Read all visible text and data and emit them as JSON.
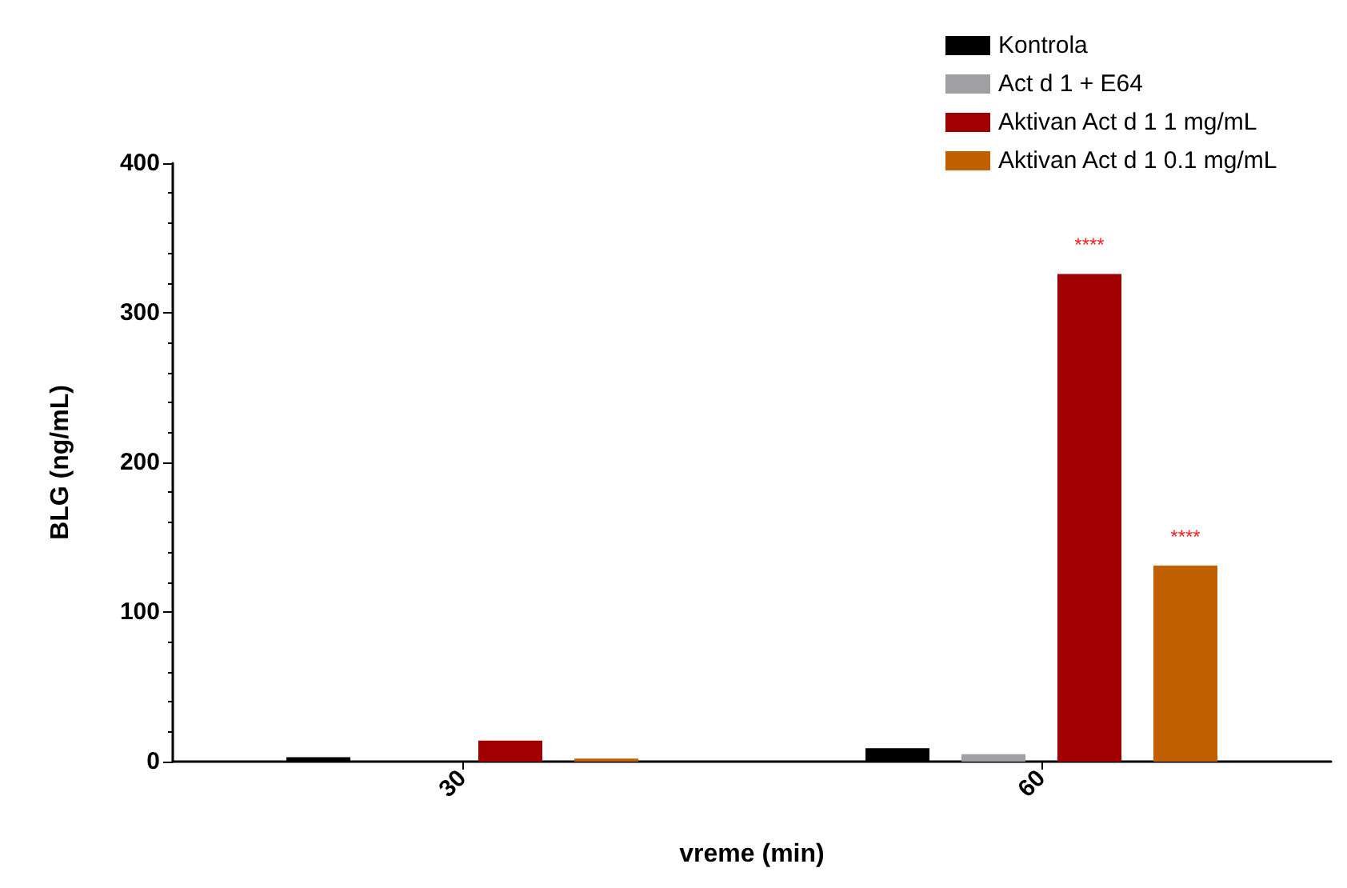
{
  "chart_data": {
    "type": "bar",
    "xlabel": "vreme (min)",
    "ylabel": "BLG (ng/mL)",
    "categories": [
      "30",
      "60"
    ],
    "series": [
      {
        "name": "Kontrola",
        "color": "#000000",
        "values": [
          3,
          9
        ]
      },
      {
        "name": "Act d 1 + E64",
        "color": "#a0a0a4",
        "values": [
          0,
          5
        ]
      },
      {
        "name": "Aktivan Act d 1 1 mg/mL",
        "color": "#a00000",
        "values": [
          14,
          326
        ],
        "value_labels": [
          null,
          "****"
        ]
      },
      {
        "name": "Aktivan Act d 1 0.1 mg/mL",
        "color": "#c06000",
        "values": [
          2,
          131
        ],
        "value_labels": [
          null,
          "****"
        ]
      }
    ],
    "ylim": [
      0,
      400
    ],
    "yticks": [
      0,
      100,
      200,
      300,
      400
    ],
    "grid": false,
    "legend": "top right"
  }
}
